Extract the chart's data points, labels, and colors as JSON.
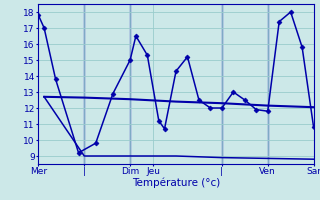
{
  "background_color": "#cce8e8",
  "grid_color": "#99cccc",
  "line_color": "#0000aa",
  "xlabel": "Température (°c)",
  "ylim": [
    8.5,
    18.5
  ],
  "yticks": [
    9,
    10,
    11,
    12,
    13,
    14,
    15,
    16,
    17,
    18
  ],
  "xlim": [
    0,
    48
  ],
  "series1_x": [
    0,
    1,
    3,
    7,
    10,
    13,
    16,
    17,
    19,
    21,
    22,
    24,
    26,
    28,
    30,
    32,
    34,
    36,
    38,
    40,
    42,
    44,
    46,
    48
  ],
  "series1_y": [
    17.8,
    17.0,
    13.8,
    9.2,
    9.8,
    12.9,
    15.0,
    16.5,
    15.3,
    11.2,
    10.7,
    14.3,
    15.2,
    12.5,
    12.0,
    12.0,
    13.0,
    12.5,
    11.9,
    11.8,
    17.4,
    18.0,
    15.8,
    10.8
  ],
  "series2_x": [
    1,
    8,
    16,
    24,
    32,
    40,
    48
  ],
  "series2_y": [
    12.7,
    12.65,
    12.55,
    12.4,
    12.3,
    12.15,
    12.05
  ],
  "series3_x": [
    1,
    8,
    16,
    24,
    32,
    40,
    48
  ],
  "series3_y": [
    12.7,
    9.0,
    9.0,
    9.0,
    8.9,
    8.85,
    8.8
  ],
  "vlines_x": [
    8,
    16,
    32,
    40
  ],
  "xtick_positions": [
    0,
    8,
    16,
    20,
    32,
    40,
    48
  ],
  "xtick_labels": [
    "Mer",
    "|",
    "Dim",
    "Jeu",
    "|",
    "Ven",
    "Sar"
  ]
}
